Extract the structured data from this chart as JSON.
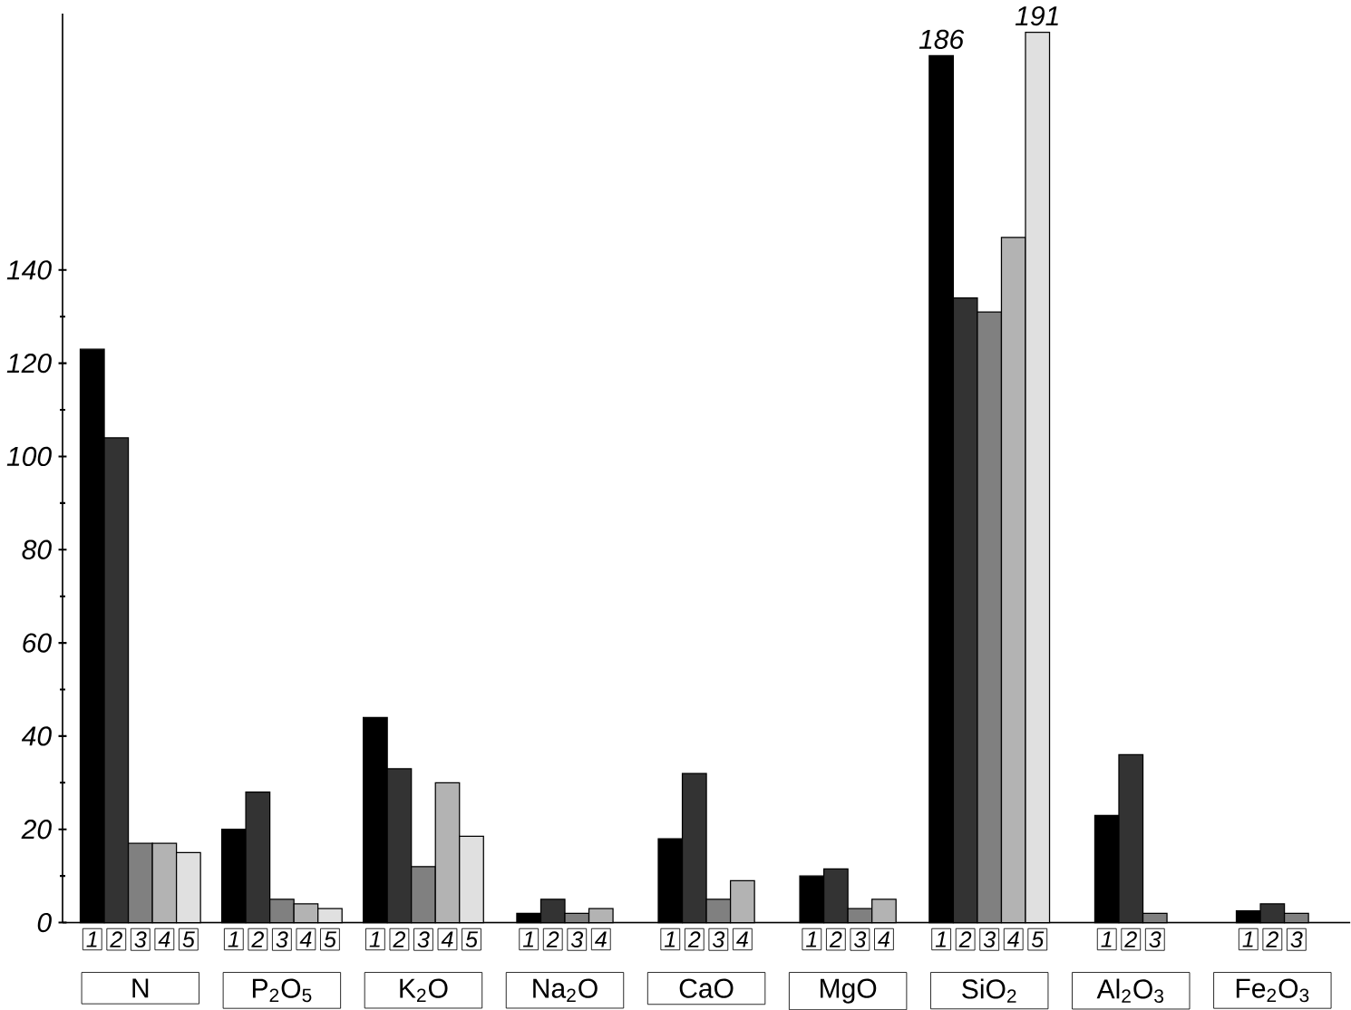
{
  "chart_data": {
    "type": "bar",
    "categories": [
      "N",
      "P$_{2}$O$_{5}$",
      "K$_{2}$O",
      "Na$_{2}$O",
      "CaO",
      "MgO",
      "SiO$_{2}$",
      "Al$_{2}$O$_{3}$",
      "Fe$_{2}$O$_{3}$"
    ],
    "series": [
      {
        "name": "1",
        "color": "#000000",
        "values": [
          123,
          20,
          44,
          2,
          18,
          10,
          186,
          23,
          2.5
        ],
        "value_labels": [
          null,
          null,
          null,
          null,
          null,
          null,
          "186",
          null,
          null
        ]
      },
      {
        "name": "2",
        "color": "#333333",
        "values": [
          104,
          28,
          33,
          5,
          32,
          11.5,
          134,
          36,
          4
        ]
      },
      {
        "name": "3",
        "color": "#808080",
        "values": [
          17,
          5,
          12,
          2,
          5,
          3,
          131,
          2,
          2
        ]
      },
      {
        "name": "4",
        "color": "#b3b3b3",
        "values": [
          17,
          4,
          30,
          3,
          9,
          5,
          147,
          null,
          null
        ]
      },
      {
        "name": "5",
        "color": "#e0e0e0",
        "values": [
          15,
          3,
          18.5,
          null,
          null,
          null,
          191,
          null,
          null
        ],
        "value_labels": [
          null,
          null,
          null,
          null,
          null,
          null,
          "191",
          null,
          null
        ]
      }
    ],
    "ylim": [
      0,
      195
    ],
    "yticks": [
      0,
      20,
      40,
      60,
      80,
      100,
      120,
      140
    ],
    "grid": false,
    "legend": "bottom"
  }
}
